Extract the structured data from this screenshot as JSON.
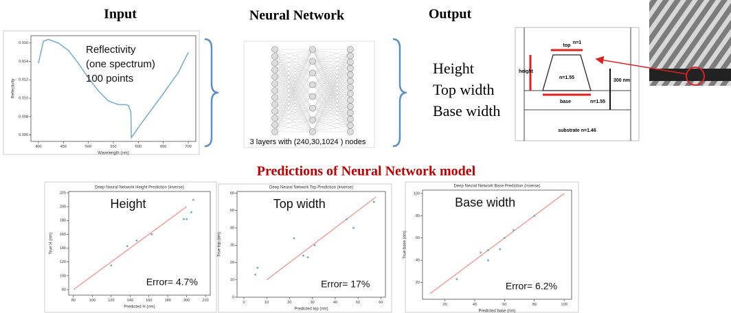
{
  "headers": {
    "input": "Input",
    "network": "Neural Network",
    "output": "Output"
  },
  "spectrum": {
    "type": "line",
    "annotation": [
      "Reflectivity",
      "(one spectrum)",
      "100 points"
    ],
    "x_label": "Wavelength (nm)",
    "y_label": "Reflectivity",
    "color": "#7aaed6",
    "x": [
      400,
      410,
      420,
      440,
      460,
      480,
      500,
      520,
      540,
      560,
      575,
      580,
      585,
      586,
      600,
      620,
      650,
      680,
      700
    ],
    "values": [
      0.0138,
      0.0162,
      0.0164,
      0.016,
      0.0152,
      0.0138,
      0.0122,
      0.0108,
      0.0097,
      0.0093,
      0.0093,
      0.0092,
      0.0085,
      0.0057,
      0.0068,
      0.0083,
      0.0105,
      0.0128,
      0.015
    ],
    "xlim": [
      385,
      715
    ],
    "ylim": [
      0.0053,
      0.0168
    ],
    "xticks": [
      400,
      450,
      500,
      550,
      600,
      650,
      700
    ],
    "yticks": [
      0.006,
      0.008,
      {
        "value": 0.01,
        "label": "0.010"
      },
      0.012,
      0.014,
      0.016
    ]
  },
  "network": {
    "caption": "3 layers with (240,30,1024 ) nodes"
  },
  "outputs": [
    "Height",
    "Top width",
    "Base width"
  ],
  "diagram": {
    "ambient": "n=1",
    "top": "top",
    "height": "height",
    "trapezoid": "n=1.55",
    "base": "base",
    "layer": "n=1.55",
    "thickness": "300 nm",
    "substrate": "substrate  n=1.46"
  },
  "predictions": {
    "title": "Predictions of Neural Network model",
    "charts": [
      {
        "type": "scatter",
        "title": "Deep Neural Network Height Prediction (inverse)",
        "label": "Height",
        "error": "Error= 4.7%",
        "x_label": "Predicted H (nm)",
        "y_label": "True H (nm)",
        "color": "#7aaed6",
        "fit_color": "#f4a09a",
        "x": [
          120,
          137,
          147,
          163,
          197,
          200,
          205,
          207
        ],
        "y": [
          115,
          143,
          151,
          160,
          182,
          182,
          192,
          210
        ],
        "fit": {
          "x": [
            80,
            200
          ],
          "y": [
            80,
            200
          ]
        },
        "xlim": [
          75,
          225
        ],
        "ylim": [
          72,
          222
        ],
        "xticks": [
          80,
          100,
          120,
          140,
          160,
          180,
          200,
          220
        ],
        "yticks": [
          80,
          100,
          120,
          140,
          160,
          180,
          200,
          220
        ]
      },
      {
        "type": "scatter",
        "title": "Deep Neural Network Top Prediction (inverse)",
        "label": "Top width",
        "error": "Error= 17%",
        "x_label": "Predicted top (nm)",
        "y_label": "True top (nm)",
        "color": "#7aaed6",
        "fit_color": "#f4a09a",
        "x": [
          5,
          6,
          22,
          26,
          28,
          31,
          45,
          48,
          57
        ],
        "y": [
          13,
          17,
          34,
          24,
          23,
          30,
          45,
          40,
          55
        ],
        "fit": {
          "x": [
            10,
            58
          ],
          "y": [
            10,
            58
          ]
        },
        "xlim": [
          -3,
          62
        ],
        "ylim": [
          0,
          61
        ],
        "xticks": [
          0,
          10,
          20,
          30,
          40,
          50,
          60
        ],
        "yticks": [
          0,
          10,
          20,
          30,
          40,
          50,
          60
        ]
      },
      {
        "type": "scatter",
        "title": "Deep Neural Network Base Prediction (inverse)",
        "label": "Base width",
        "error": "Error= 6.2%",
        "x_label": "Predicted base (nm)",
        "y_label": "True base (nm)",
        "color": "#7aaed6",
        "fit_color": "#f4a09a",
        "x": [
          28,
          44,
          49,
          49,
          57,
          60,
          66,
          80
        ],
        "y": [
          23,
          47,
          40,
          49,
          50,
          60,
          67,
          80
        ],
        "fit": {
          "x": [
            10,
            100
          ],
          "y": [
            10,
            100
          ]
        },
        "xlim": [
          5,
          105
        ],
        "ylim": [
          5,
          103
        ],
        "xticks": [
          20,
          40,
          60,
          80,
          100
        ],
        "yticks": [
          20,
          40,
          60,
          80,
          100
        ]
      }
    ]
  }
}
